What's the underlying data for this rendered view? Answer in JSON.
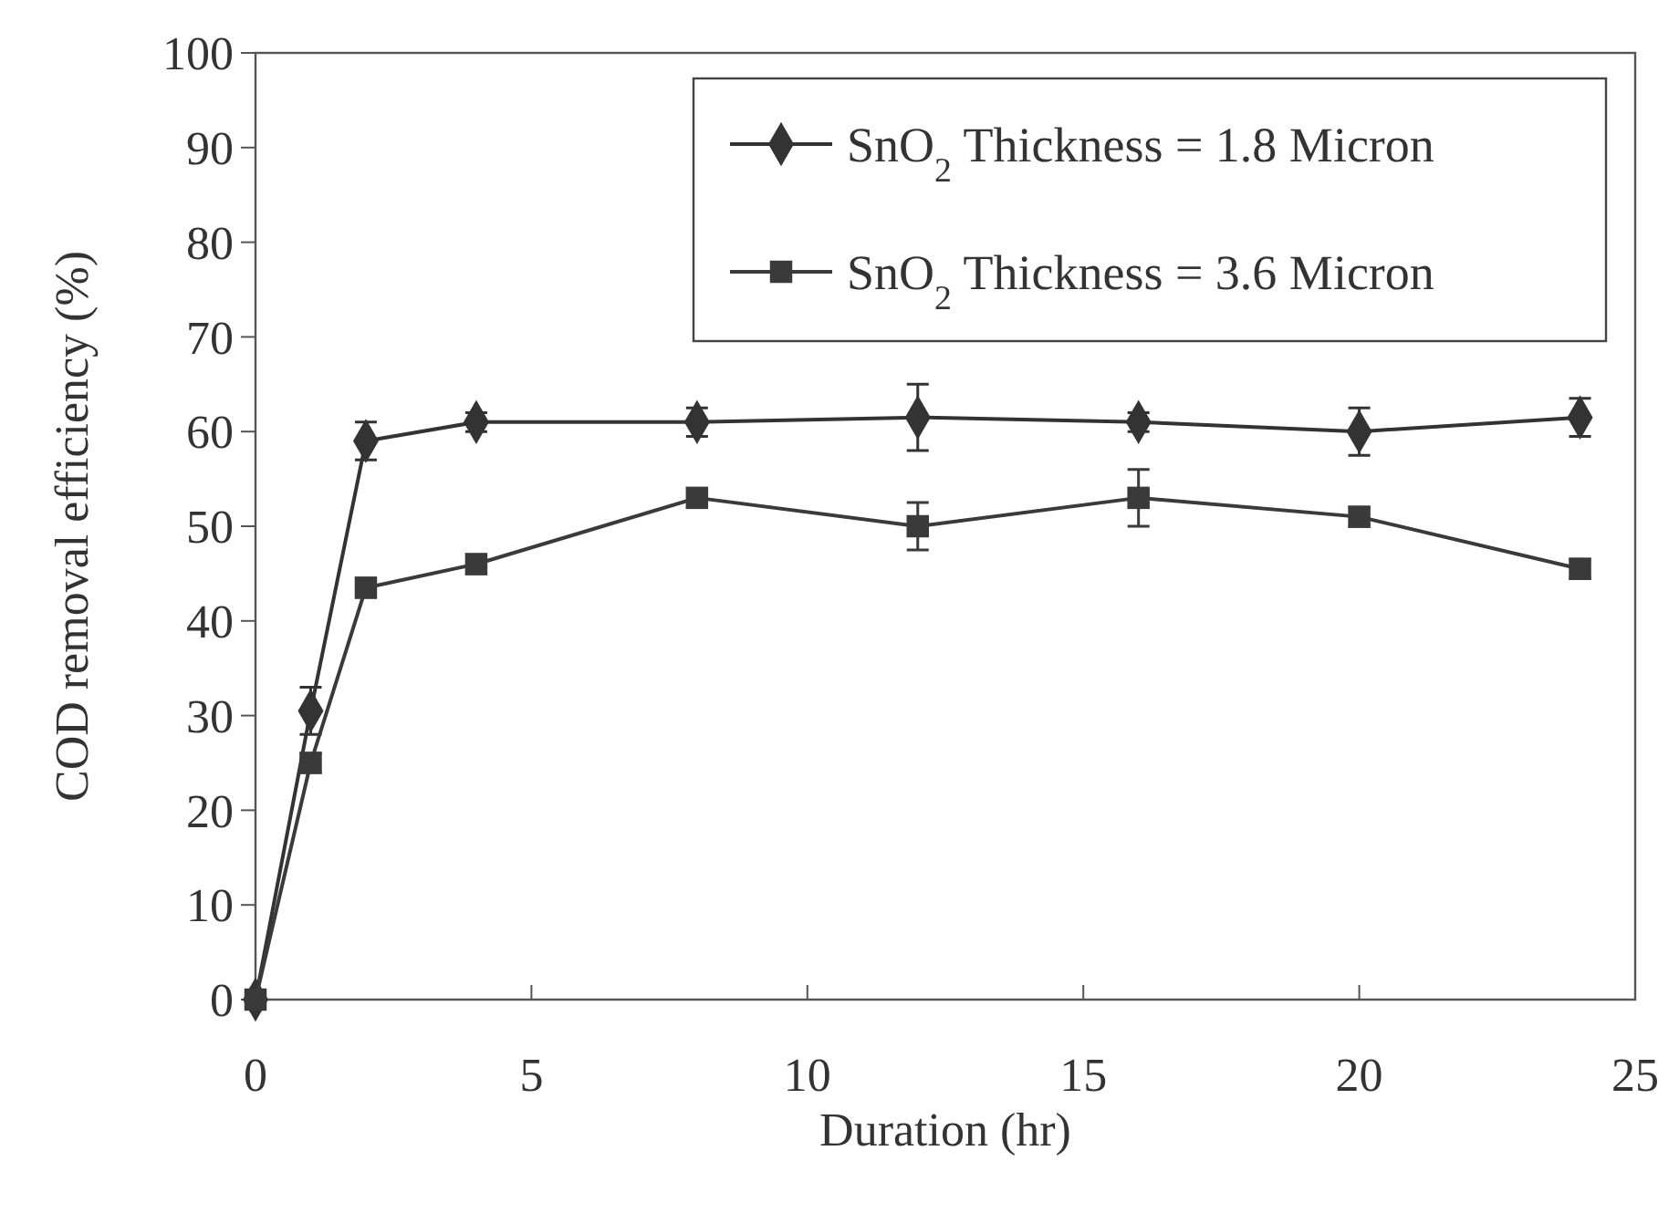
{
  "chart_data": {
    "type": "line",
    "xlabel": "Duration (hr)",
    "ylabel": "COD removal efficiency (%)",
    "xlim": [
      0,
      25
    ],
    "xticks": [
      0,
      5,
      10,
      15,
      20,
      25
    ],
    "ylim": [
      0,
      100
    ],
    "yticks": [
      0,
      10,
      20,
      30,
      40,
      50,
      60,
      70,
      80,
      90,
      100
    ],
    "grid": false,
    "legend": "top right",
    "line_style": "solid",
    "series": [
      {
        "name": "SnO$_{2}$ Thickness = 1.8 Micron",
        "color": "#333333",
        "marker": "diamond",
        "x": [
          0,
          1,
          2,
          4,
          8,
          12,
          16,
          20,
          24
        ],
        "values": [
          0,
          30.5,
          59,
          61,
          61,
          61.5,
          61,
          60,
          61.5
        ],
        "errors": [
          null,
          2.5,
          2,
          1,
          1.5,
          3.5,
          1,
          2.5,
          2
        ]
      },
      {
        "name": "SnO$_{2}$ Thickness = 3.6 Micron",
        "color": "#3a3a3a",
        "marker": "square",
        "x": [
          0,
          1,
          2,
          4,
          8,
          12,
          16,
          20,
          24
        ],
        "values": [
          0,
          25,
          43.5,
          46,
          53,
          50,
          53,
          51,
          45.5
        ],
        "errors": [
          null,
          1,
          1,
          1,
          1,
          2.5,
          3,
          1,
          1
        ]
      }
    ]
  }
}
